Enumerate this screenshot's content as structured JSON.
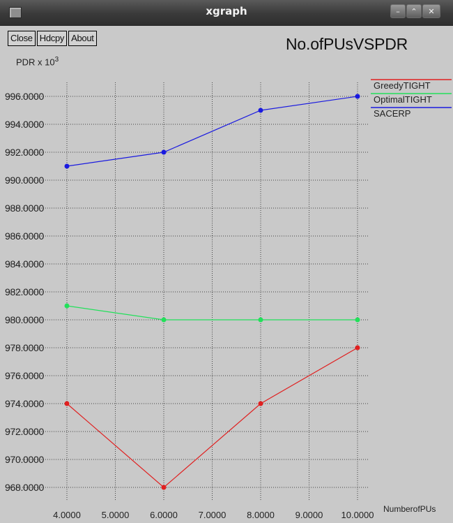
{
  "window": {
    "title": "xgraph",
    "icons": {
      "menu": "window-menu-icon",
      "minimize": "minimize-icon",
      "maximize": "maximize-icon",
      "close": "close-icon"
    }
  },
  "toolbar": {
    "close_label": "Close",
    "hdcpy_label": "Hdcpy",
    "about_label": "About"
  },
  "colors": {
    "background": "#c9c9c9",
    "grid": "#444444",
    "greedy": "#e02020",
    "optimal": "#22e05a",
    "sacerp": "#1a1ae0"
  },
  "chart_data": {
    "type": "line",
    "title": "No.ofPUsVSPDR",
    "ylabel_prefix": "PDR x 10",
    "ylabel_exp": "3",
    "xlabel": "NumberofPUs",
    "xlim": [
      4.0,
      10.0
    ],
    "ylim": [
      967.0,
      997.0
    ],
    "grid": true,
    "legend_position": "top-right",
    "x_ticks": [
      "4.0000",
      "5.0000",
      "6.0000",
      "7.0000",
      "8.0000",
      "9.0000",
      "10.0000"
    ],
    "y_ticks": [
      "968.0000",
      "970.0000",
      "972.0000",
      "974.0000",
      "976.0000",
      "978.0000",
      "980.0000",
      "982.0000",
      "984.0000",
      "986.0000",
      "988.0000",
      "990.0000",
      "992.0000",
      "994.0000",
      "996.0000"
    ],
    "x": [
      4,
      6,
      8,
      10
    ],
    "series": [
      {
        "name": "GreedyTIGHT",
        "color": "#e02020",
        "values": [
          974,
          968,
          974,
          978
        ]
      },
      {
        "name": "OptimalTIGHT",
        "color": "#22e05a",
        "values": [
          981,
          980,
          980,
          980
        ]
      },
      {
        "name": "SACERP",
        "color": "#1a1ae0",
        "values": [
          991,
          992,
          995,
          996
        ]
      }
    ]
  }
}
